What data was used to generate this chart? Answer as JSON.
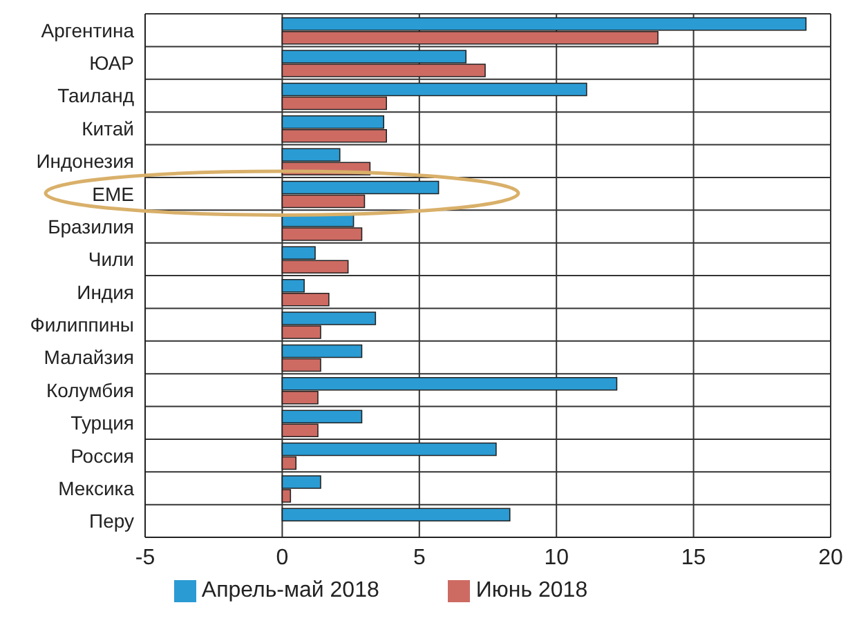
{
  "chart_data": {
    "type": "bar",
    "orientation": "horizontal",
    "categories": [
      "Аргентина",
      "ЮАР",
      "Таиланд",
      "Китай",
      "Индонезия",
      "EME",
      "Бразилия",
      "Чили",
      "Индия",
      "Филиппины",
      "Малайзия",
      "Колумбия",
      "Турция",
      "Россия",
      "Мексика",
      "Перу"
    ],
    "series": [
      {
        "name": "Апрель-май 2018",
        "color": "#2b9bd3",
        "values": [
          19.1,
          6.7,
          11.1,
          3.7,
          2.1,
          5.7,
          2.6,
          1.2,
          0.8,
          3.4,
          2.9,
          12.2,
          2.9,
          7.8,
          1.4,
          8.3
        ]
      },
      {
        "name": "Июнь 2018",
        "color": "#cd6b63",
        "values": [
          13.7,
          7.4,
          3.8,
          3.8,
          3.2,
          3.0,
          2.9,
          2.4,
          1.7,
          1.4,
          1.4,
          1.3,
          1.3,
          0.5,
          0.3,
          0
        ]
      }
    ],
    "xlim": [
      -5,
      20
    ],
    "xticks": [
      -5,
      0,
      5,
      10,
      15,
      20
    ],
    "grid": true,
    "legend": "bottom"
  }
}
